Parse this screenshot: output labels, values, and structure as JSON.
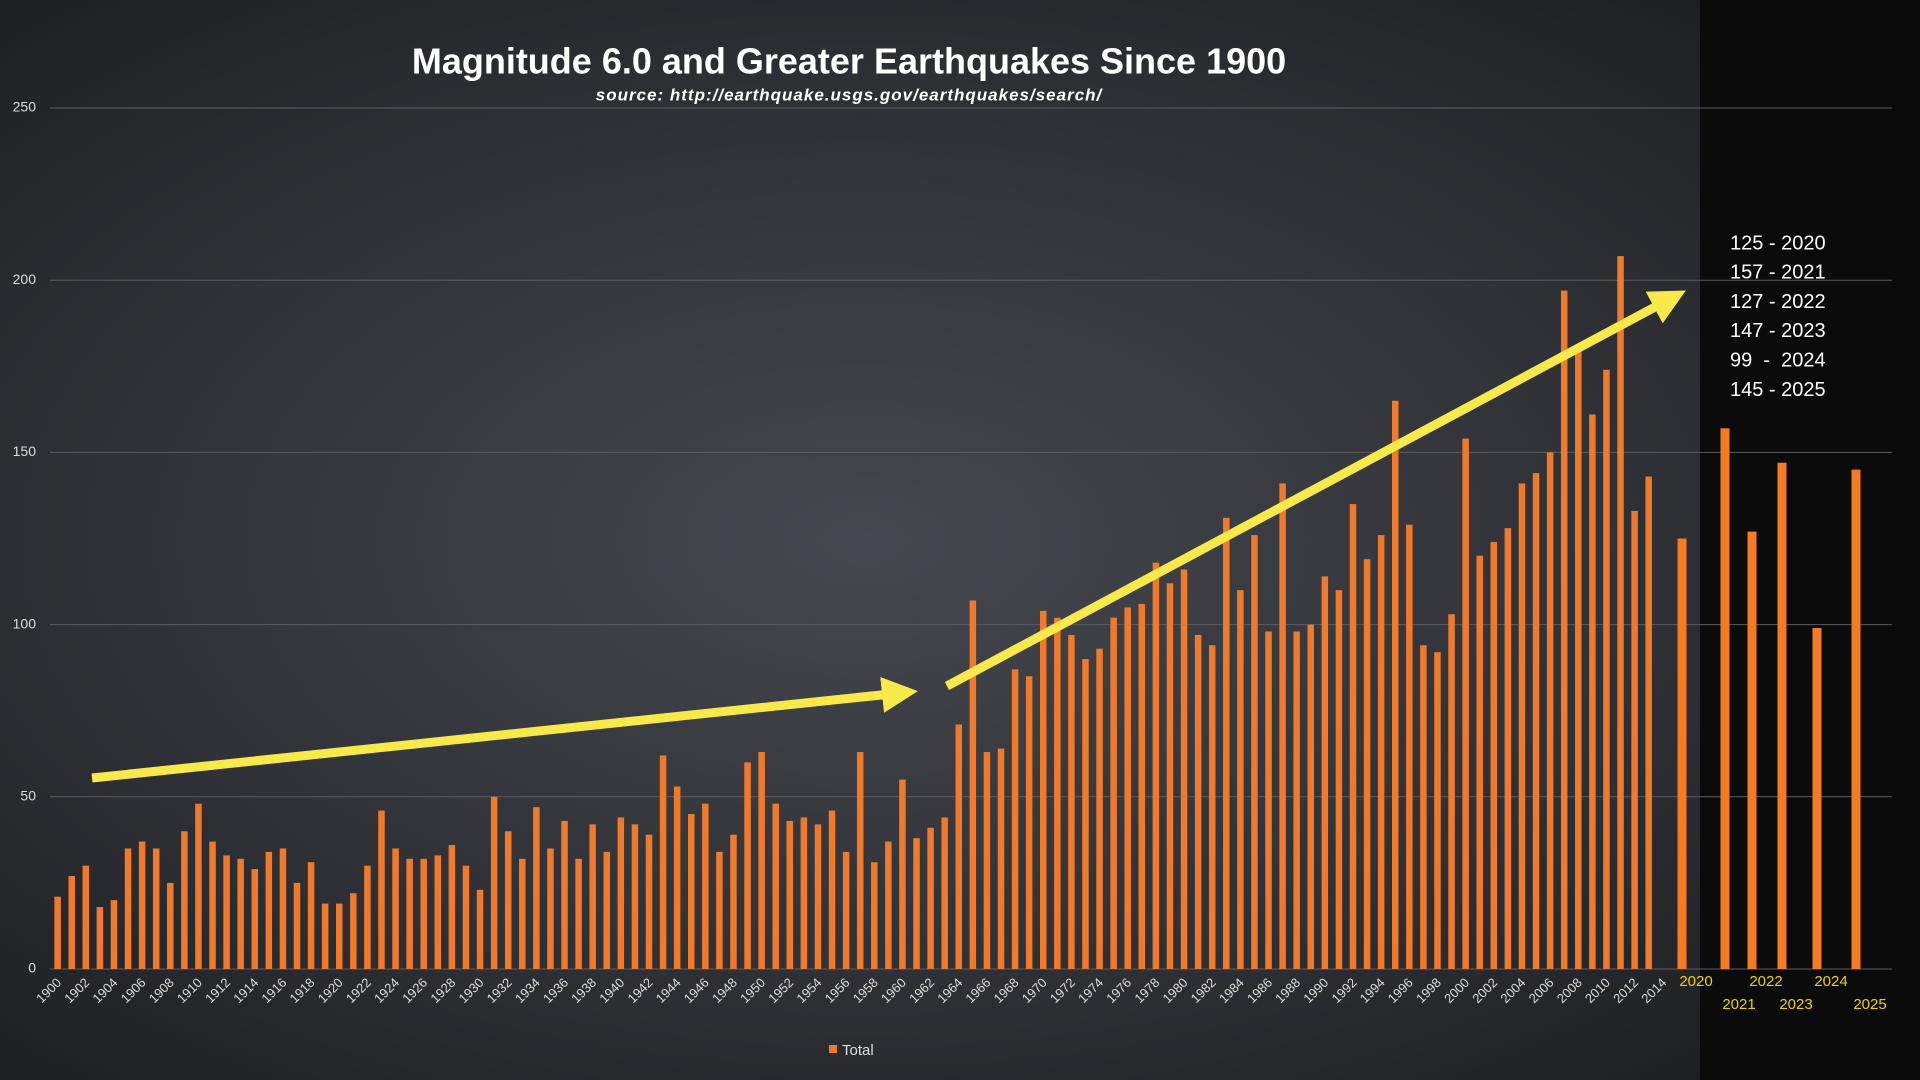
{
  "chart_data": {
    "type": "bar",
    "title": "Magnitude 6.0 and Greater Earthquakes Since 1900",
    "subtitle": "source: http://earthquake.usgs.gov/earthquakes/search/",
    "categories": [
      "1900",
      null,
      "1902",
      null,
      "1904",
      null,
      "1906",
      null,
      "1908",
      null,
      "1910",
      null,
      "1912",
      null,
      "1914",
      null,
      "1916",
      null,
      "1918",
      null,
      "1920",
      null,
      "1922",
      null,
      "1924",
      null,
      "1926",
      null,
      "1928",
      null,
      "1930",
      null,
      "1932",
      null,
      "1934",
      null,
      "1936",
      null,
      "1938",
      null,
      "1940",
      null,
      "1942",
      null,
      "1944",
      null,
      "1946",
      null,
      "1948",
      null,
      "1950",
      null,
      "1952",
      null,
      "1954",
      null,
      "1956",
      null,
      "1958",
      null,
      "1960",
      null,
      "1962",
      null,
      "1964",
      null,
      "1966",
      null,
      "1968",
      null,
      "1970",
      null,
      "1972",
      null,
      "1974",
      null,
      "1976",
      null,
      "1978",
      null,
      "1980",
      null,
      "1982",
      null,
      "1984",
      null,
      "1986",
      null,
      "1988",
      null,
      "1990",
      null,
      "1992",
      null,
      "1994",
      null,
      "1996",
      null,
      "1998",
      null,
      "2000",
      null,
      "2002",
      null,
      "2004",
      null,
      "2006",
      null,
      "2008",
      null,
      "2010",
      null,
      "2012",
      null,
      "2014"
    ],
    "series": [
      {
        "name": "Total",
        "color": "#f07a2a",
        "values": [
          21,
          27,
          30,
          18,
          20,
          35,
          37,
          35,
          25,
          40,
          48,
          37,
          33,
          32,
          29,
          34,
          35,
          25,
          31,
          19,
          19,
          22,
          30,
          46,
          35,
          32,
          32,
          33,
          36,
          30,
          23,
          50,
          40,
          32,
          47,
          35,
          43,
          32,
          42,
          34,
          44,
          42,
          39,
          62,
          53,
          45,
          48,
          34,
          39,
          60,
          63,
          48,
          43,
          44,
          42,
          46,
          34,
          63,
          31,
          37,
          55,
          38,
          41,
          44,
          71,
          107,
          63,
          64,
          87,
          85,
          104,
          102,
          97,
          90,
          93,
          102,
          105,
          106,
          118,
          112,
          116,
          97,
          94,
          131,
          110,
          126,
          98,
          141,
          98,
          100,
          114,
          110,
          135,
          119,
          126,
          165,
          129,
          94,
          92,
          103,
          154,
          120,
          124,
          128,
          141,
          144,
          150,
          197,
          180,
          161,
          174,
          207,
          133,
          143,
          null
        ]
      }
    ],
    "ylim": [
      0,
      250
    ],
    "yticks": [
      0,
      50,
      100,
      150,
      200,
      250
    ],
    "grid": true,
    "legend": "bottom",
    "inset": {
      "categories": [
        "2020",
        "2021",
        "2022",
        "2023",
        "2024",
        "2025"
      ],
      "values": [
        125,
        157,
        127,
        147,
        99,
        145
      ],
      "color": "#f47b20",
      "label_color": "#f0d000"
    },
    "annotation_lines": [
      "125 - 2020",
      "157 - 2021",
      "127 - 2022",
      "147 - 2023",
      "99  -  2024",
      "145 - 2025"
    ]
  }
}
